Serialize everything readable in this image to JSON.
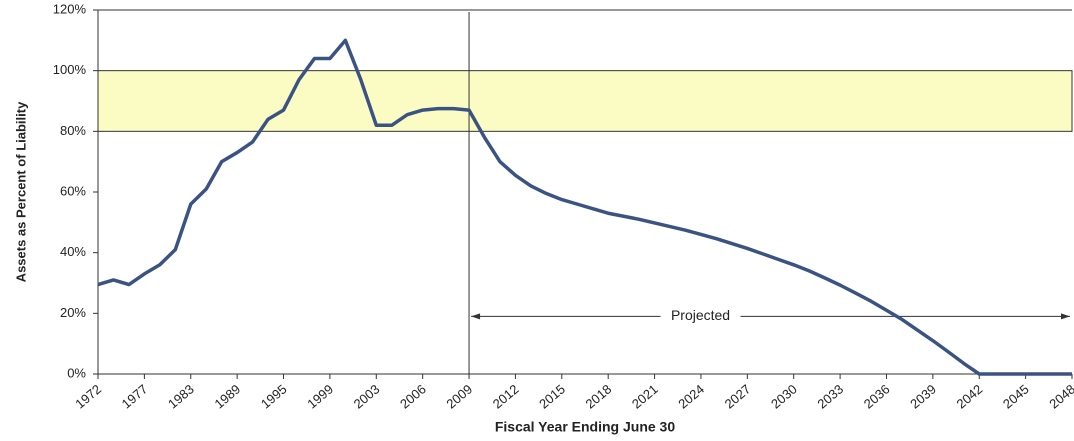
{
  "chart_data": {
    "type": "line",
    "x_label": "Fiscal Year Ending June 30",
    "y_label": "Assets as Percent of Liability",
    "categories": [
      "1972",
      null,
      null,
      "1977",
      null,
      null,
      "1983",
      null,
      null,
      "1989",
      null,
      null,
      "1995",
      null,
      null,
      "1999",
      null,
      null,
      "2003",
      null,
      null,
      "2006",
      null,
      null,
      "2009",
      null,
      null,
      "2012",
      null,
      null,
      "2015",
      null,
      null,
      "2018",
      null,
      null,
      "2021",
      null,
      null,
      "2024",
      null,
      null,
      "2027",
      null,
      null,
      "2030",
      null,
      null,
      "2033",
      null,
      null,
      "2036",
      null,
      null,
      "2039",
      null,
      null,
      "2042",
      null,
      null,
      "2045",
      null,
      null,
      "2048"
    ],
    "series": [
      {
        "color": "#3b5383",
        "values": [
          29.5,
          31,
          29.5,
          33,
          36,
          41,
          56,
          61,
          70,
          73,
          76.5,
          84,
          87,
          97,
          104,
          104,
          110,
          97,
          82,
          82,
          85.5,
          87,
          87.5,
          87.5,
          87,
          78,
          70,
          65.5,
          62,
          59.5,
          57.5,
          56,
          54.5,
          53,
          52,
          51,
          49.8,
          48.6,
          47.4,
          46,
          44.6,
          43,
          41.4,
          39.6,
          37.8,
          36,
          34,
          31.7,
          29.3,
          26.7,
          24,
          21,
          18,
          14.5,
          11,
          7.3,
          3.5,
          0,
          0,
          0,
          0,
          0,
          0,
          0
        ]
      }
    ],
    "ylim": [
      0,
      120
    ],
    "yticks": [
      {
        "value": 0,
        "label": "0%"
      },
      {
        "value": 20,
        "label": "20%"
      },
      {
        "value": 40,
        "label": "40%"
      },
      {
        "value": 60,
        "label": "60%"
      },
      {
        "value": 80,
        "label": "80%"
      },
      {
        "value": 100,
        "label": "100%"
      },
      {
        "value": 120,
        "label": "120%"
      }
    ],
    "shaded_range": [
      80,
      100
    ],
    "shaded_color": "#fbfbc4",
    "projection_start_index": 24,
    "projection_label": "Projected",
    "projection_label_y": 19
  }
}
